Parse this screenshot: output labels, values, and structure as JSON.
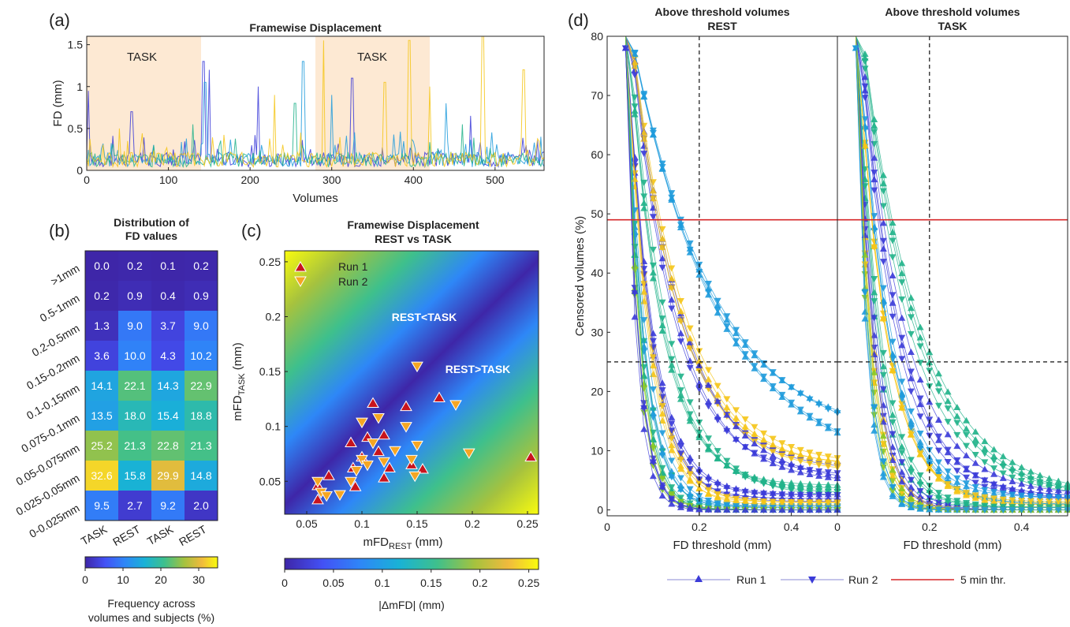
{
  "panels": {
    "a": {
      "label": "(a)",
      "title": "Framewise Displacement",
      "xlabel": "Volumes",
      "ylabel": "FD (mm)",
      "task_labels": [
        "TASK",
        "TASK"
      ]
    },
    "b": {
      "label": "(b)",
      "title_lines": [
        "Distribution of",
        "FD values"
      ],
      "colorbar_label_lines": [
        "Frequency across",
        "volumes and subjects (%)"
      ]
    },
    "c": {
      "label": "(c)",
      "title_lines": [
        "Framewise Displacement",
        "REST vs TASK"
      ],
      "xlabel_main": "mFD",
      "xlabel_sub": "REST",
      "xlabel_unit": " (mm)",
      "ylabel_main": "mFD",
      "ylabel_sub": "TASK",
      "ylabel_unit": " (mm)",
      "region_upper": "REST<TASK",
      "region_lower": "REST>TASK",
      "legend": [
        "Run 1",
        "Run 2"
      ],
      "colorbar_label": "|ΔmFD| (mm)"
    },
    "d": {
      "label": "(d)",
      "left_title_lines": [
        "Above threshold volumes",
        "REST"
      ],
      "right_title_lines": [
        "Above threshold volumes",
        "TASK"
      ],
      "ylabel": "Censored volumes (%)",
      "xlabel": "FD threshold (mm)",
      "legend": [
        "Run 1",
        "Run 2",
        "5 min thr."
      ]
    }
  },
  "colors": {
    "task_shade": "#fde9d3",
    "run1_marker": "#c8141e",
    "run2_marker": "#f5a623",
    "threshold_line": "#d62728"
  },
  "chart_data": [
    {
      "type": "line",
      "panel": "a",
      "title": "Framewise Displacement",
      "xlabel": "Volumes",
      "ylabel": "FD (mm)",
      "xlim": [
        0,
        560
      ],
      "ylim": [
        0,
        1.6
      ],
      "xticks": [
        0,
        100,
        200,
        300,
        400,
        500
      ],
      "yticks": [
        0,
        0.5,
        1,
        1.5
      ],
      "task_blocks": [
        [
          0,
          140
        ],
        [
          280,
          420
        ]
      ],
      "approx_series": [
        {
          "color": "#3b3bd8",
          "peaks": [
            [
              2,
              0.95
            ],
            [
              55,
              0.7
            ],
            [
              143,
              1.3
            ],
            [
              150,
              1.2
            ],
            [
              210,
              1.0
            ],
            [
              325,
              1.1
            ],
            [
              470,
              0.65
            ]
          ]
        },
        {
          "color": "#1f9bdc",
          "peaks": [
            [
              145,
              1.05
            ],
            [
              265,
              1.3
            ],
            [
              300,
              0.9
            ],
            [
              440,
              0.8
            ]
          ]
        },
        {
          "color": "#20b28a",
          "peaks": [
            [
              130,
              0.55
            ],
            [
              255,
              0.8
            ],
            [
              460,
              0.55
            ]
          ]
        },
        {
          "color": "#f5c518",
          "peaks": [
            [
              40,
              0.5
            ],
            [
              230,
              0.9
            ],
            [
              290,
              1.55
            ],
            [
              365,
              1.05
            ],
            [
              395,
              1.55
            ],
            [
              420,
              1.0
            ],
            [
              485,
              1.6
            ],
            [
              535,
              1.2
            ]
          ]
        }
      ]
    },
    {
      "type": "heatmap",
      "panel": "b",
      "title": "Distribution of FD values",
      "columns": [
        "TASK",
        "REST",
        "TASK",
        "REST"
      ],
      "rows": [
        ">1mm",
        "0.5-1mm",
        "0.2-0.5mm",
        "0.15-0.2mm",
        "0.1-0.15mm",
        "0.075-0.1mm",
        "0.05-0.075mm",
        "0.025-0.05mm",
        "0-0.025mm"
      ],
      "values": [
        [
          0.0,
          0.2,
          0.1,
          0.2
        ],
        [
          0.2,
          0.9,
          0.4,
          0.9
        ],
        [
          1.3,
          9.0,
          3.7,
          9.0
        ],
        [
          3.6,
          10.0,
          4.3,
          10.2
        ],
        [
          14.1,
          22.1,
          14.3,
          22.9
        ],
        [
          13.5,
          18.0,
          15.4,
          18.8
        ],
        [
          25.2,
          21.3,
          22.8,
          21.3
        ],
        [
          32.6,
          15.8,
          29.9,
          14.8
        ],
        [
          9.5,
          2.7,
          9.2,
          2.0
        ]
      ],
      "colorbar": {
        "range": [
          0,
          35
        ],
        "ticks": [
          0,
          10,
          20,
          30
        ],
        "label": "Frequency across volumes and subjects (%)"
      }
    },
    {
      "type": "scatter",
      "panel": "c",
      "title": "Framewise Displacement REST vs TASK",
      "xlim": [
        0.03,
        0.26
      ],
      "ylim": [
        0.02,
        0.26
      ],
      "xticks": [
        0.05,
        0.1,
        0.15,
        0.2,
        0.25
      ],
      "yticks": [
        0.05,
        0.1,
        0.15,
        0.2,
        0.25
      ],
      "background": "|ΔmFD| heatmap",
      "colorbar": {
        "range": [
          0,
          0.26
        ],
        "ticks": [
          0,
          0.05,
          0.1,
          0.15,
          0.2,
          0.25
        ],
        "label": "|ΔmFD| (mm)"
      },
      "series": [
        {
          "name": "Run 1",
          "marker": "triangle-up",
          "points": [
            [
              0.06,
              0.033
            ],
            [
              0.06,
              0.046
            ],
            [
              0.07,
              0.055
            ],
            [
              0.09,
              0.085
            ],
            [
              0.092,
              0.062
            ],
            [
              0.094,
              0.045
            ],
            [
              0.1,
              0.072
            ],
            [
              0.105,
              0.09
            ],
            [
              0.11,
              0.121
            ],
            [
              0.115,
              0.077
            ],
            [
              0.12,
              0.092
            ],
            [
              0.12,
              0.053
            ],
            [
              0.125,
              0.062
            ],
            [
              0.14,
              0.118
            ],
            [
              0.145,
              0.065
            ],
            [
              0.155,
              0.061
            ],
            [
              0.17,
              0.126
            ],
            [
              0.253,
              0.072
            ]
          ]
        },
        {
          "name": "Run 2",
          "marker": "triangle-down",
          "points": [
            [
              0.06,
              0.05
            ],
            [
              0.063,
              0.04
            ],
            [
              0.068,
              0.037
            ],
            [
              0.08,
              0.038
            ],
            [
              0.09,
              0.05
            ],
            [
              0.095,
              0.06
            ],
            [
              0.1,
              0.104
            ],
            [
              0.1,
              0.07
            ],
            [
              0.105,
              0.065
            ],
            [
              0.11,
              0.085
            ],
            [
              0.115,
              0.108
            ],
            [
              0.12,
              0.068
            ],
            [
              0.13,
              0.078
            ],
            [
              0.14,
              0.1
            ],
            [
              0.145,
              0.07
            ],
            [
              0.148,
              0.055
            ],
            [
              0.15,
              0.083
            ],
            [
              0.15,
              0.155
            ],
            [
              0.185,
              0.12
            ],
            [
              0.197,
              0.076
            ]
          ]
        }
      ]
    },
    {
      "type": "line",
      "panel": "d",
      "titles": [
        "Above threshold volumes REST",
        "Above threshold volumes TASK"
      ],
      "xlabel": "FD threshold (mm)",
      "ylabel": "Censored volumes (%)",
      "xlim": [
        0,
        0.5
      ],
      "ylim": [
        -1,
        80
      ],
      "xticks": [
        0,
        0.2,
        0.4
      ],
      "yticks": [
        0,
        10,
        20,
        30,
        40,
        50,
        60,
        70,
        80
      ],
      "reference_lines": {
        "vertical_dashed_x": 0.2,
        "horizontal_dashed_y": 25,
        "red_horizontal_y": 49
      },
      "series": [
        {
          "name": "Run 1",
          "marker": "triangle-up"
        },
        {
          "name": "Run 2",
          "marker": "triangle-down"
        },
        {
          "name": "5 min thr."
        }
      ],
      "decay_curves_rest": [
        {
          "y0": 85,
          "k": 6,
          "tail": 9,
          "color": "#1f9bdc"
        },
        {
          "y0": 90,
          "k": 9,
          "tail": 6,
          "color": "#f5c518"
        },
        {
          "y0": 90,
          "k": 10,
          "tail": 5,
          "color": "#3b3bd8"
        },
        {
          "y0": 88,
          "k": 14,
          "tail": 3,
          "color": "#20b28a"
        },
        {
          "y0": 85,
          "k": 18,
          "tail": 2,
          "color": "#3b3bd8"
        },
        {
          "y0": 85,
          "k": 22,
          "tail": 1,
          "color": "#f5c518"
        },
        {
          "y0": 80,
          "k": 26,
          "tail": 0.5,
          "color": "#1f9bdc"
        },
        {
          "y0": 82,
          "k": 30,
          "tail": 0,
          "color": "#20b28a"
        },
        {
          "y0": 80,
          "k": 35,
          "tail": 0,
          "color": "#8ac926"
        },
        {
          "y0": 78,
          "k": 40,
          "tail": 0,
          "color": "#3b3bd8"
        }
      ],
      "decay_curves_task": [
        {
          "y0": 90,
          "k": 9,
          "tail": 3,
          "color": "#20b28a"
        },
        {
          "y0": 90,
          "k": 12,
          "tail": 2,
          "color": "#3b3bd8"
        },
        {
          "y0": 88,
          "k": 15,
          "tail": 1.5,
          "color": "#1f9bdc"
        },
        {
          "y0": 85,
          "k": 18,
          "tail": 1,
          "color": "#f5c518"
        },
        {
          "y0": 85,
          "k": 22,
          "tail": 0.5,
          "color": "#20b28a"
        },
        {
          "y0": 82,
          "k": 26,
          "tail": 0,
          "color": "#3b3bd8"
        },
        {
          "y0": 80,
          "k": 30,
          "tail": 0,
          "color": "#f5c518"
        },
        {
          "y0": 80,
          "k": 35,
          "tail": 0,
          "color": "#8ac926"
        },
        {
          "y0": 78,
          "k": 40,
          "tail": 0,
          "color": "#1f9bdc"
        }
      ]
    }
  ]
}
